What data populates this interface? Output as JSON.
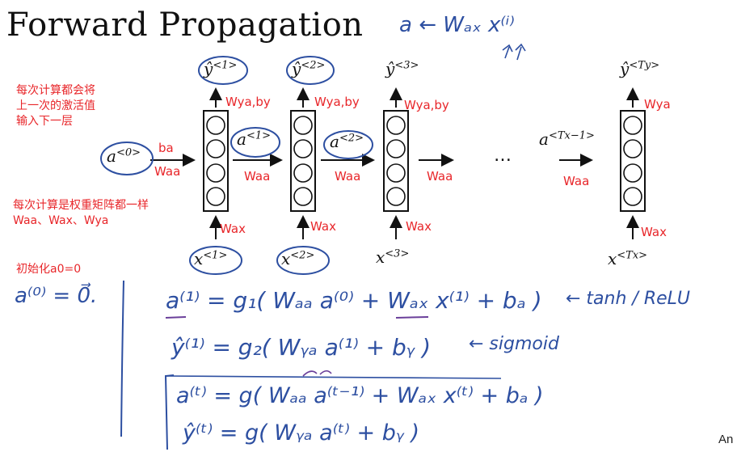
{
  "title": "Forward Propagation",
  "notes": {
    "note1": [
      "每次计算都会将",
      "上一次的激活值",
      "输入下一层"
    ],
    "note2": [
      "每次计算是权重矩阵都一样",
      "Waa、Wax、Wya"
    ],
    "note3": "初始化a0=0"
  },
  "labels": {
    "ba": "ba",
    "waa": "Waa",
    "wax": "Wax",
    "wya_by": "Wya,by",
    "wya": "Wya",
    "dots": "…"
  },
  "math": {
    "a0": "a",
    "a0_sup": "<0>",
    "a1": "a",
    "a1_sup": "<1>",
    "a2": "a",
    "a2_sup": "<2>",
    "atx": "a",
    "atx_sup": "<Tx−1>",
    "y1": "ŷ",
    "y1_sup": "<1>",
    "y2": "ŷ",
    "y2_sup": "<2>",
    "y3": "ŷ",
    "y3_sup": "<3>",
    "yty": "ŷ",
    "yty_sup": "<Ty>",
    "x1": "x",
    "x1_sup": "<1>",
    "x2": "x",
    "x2_sup": "<2>",
    "x3": "x",
    "x3_sup": "<3>",
    "xtx": "x",
    "xtx_sup": "<Tx>"
  },
  "handwriting": {
    "top": "a ← Wₐₓ x⁽ⁱ⁾",
    "init": "a⁽⁰⁾ = 0⃗.",
    "eq1": "a⁽¹⁾ = g₁( Wₐₐ a⁽⁰⁾ + Wₐₓ x⁽¹⁾ + bₐ )",
    "eq1_note": "← tanh / ReLU",
    "eq2": "ŷ⁽¹⁾ = g₂( Wᵧₐ a⁽¹⁾ + bᵧ )",
    "eq2_note": "← sigmoid",
    "eq3": "a⁽ᵗ⁾ = g( Wₐₐ a⁽ᵗ⁻¹⁾ + Wₐₓ x⁽ᵗ⁾ + bₐ )",
    "eq4": "ŷ⁽ᵗ⁾ = g( Wᵧₐ a⁽ᵗ⁾ + bᵧ )"
  },
  "signature": "An",
  "colors": {
    "annotation": "#e8262a",
    "ink": "#2d4fa1",
    "text": "#111111"
  }
}
